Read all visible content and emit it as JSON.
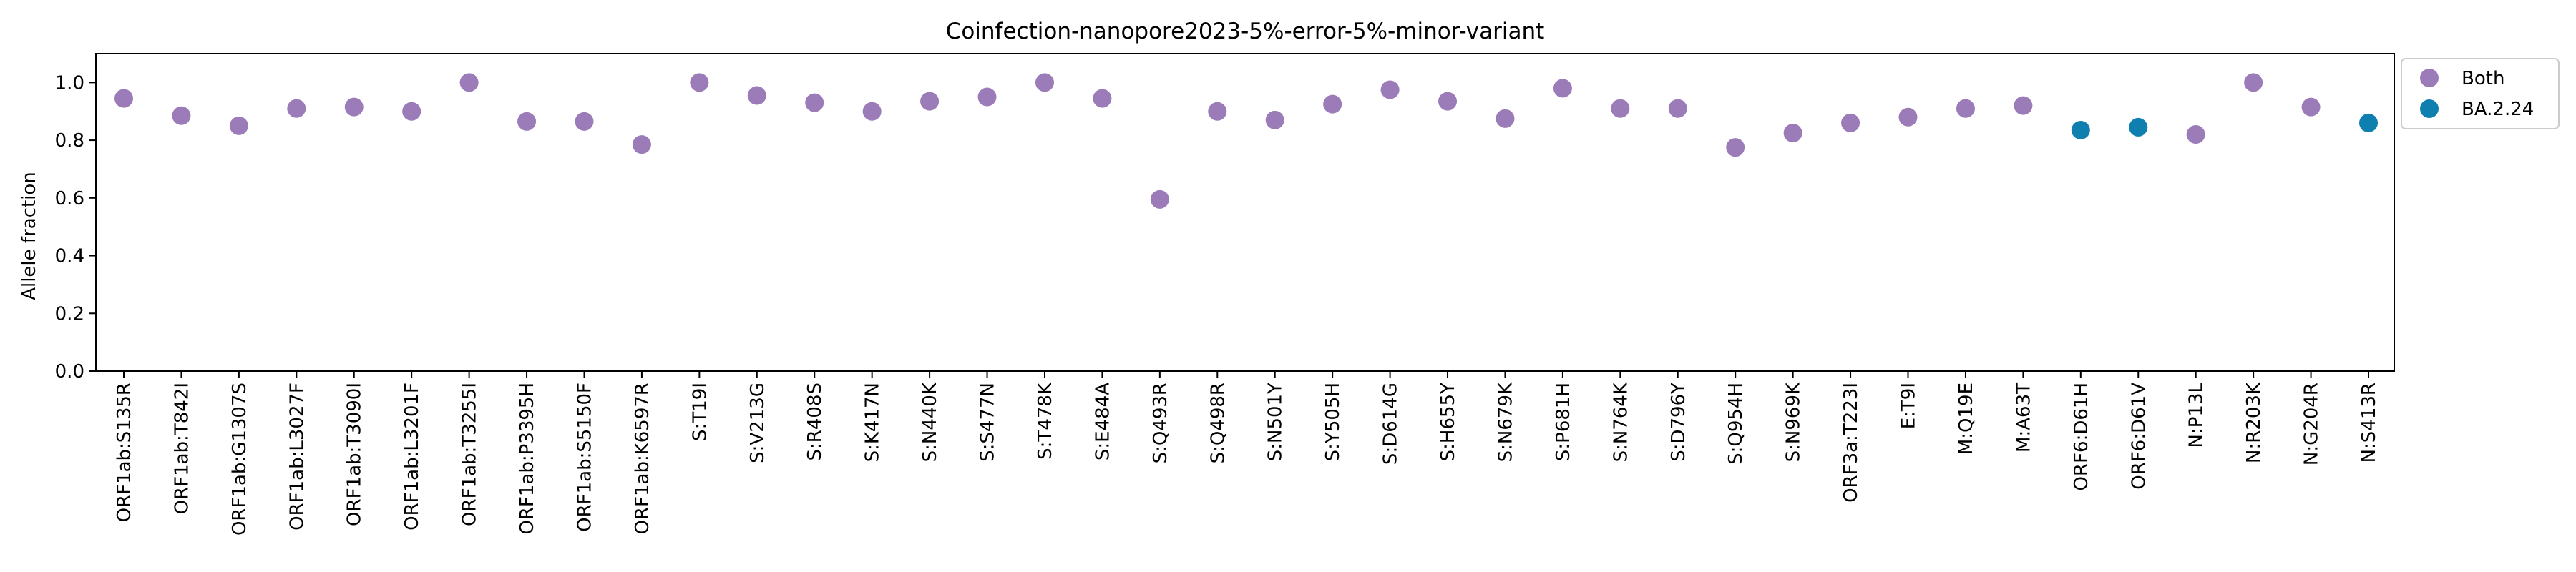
{
  "chart_data": {
    "type": "scatter",
    "title": "Coinfection-nanopore2023-5%-error-5%-minor-variant",
    "xlabel": "",
    "ylabel": "Allele fraction",
    "ylim": [
      0,
      1.1
    ],
    "yticks": [
      0.0,
      0.2,
      0.4,
      0.6,
      0.8,
      1.0
    ],
    "ytick_labels": [
      "0.0",
      "0.2",
      "0.4",
      "0.6",
      "0.8",
      "1.0"
    ],
    "grid": false,
    "legend_position": "outside-top-right",
    "categories": [
      "ORF1ab:S135R",
      "ORF1ab:T842I",
      "ORF1ab:G1307S",
      "ORF1ab:L3027F",
      "ORF1ab:T3090I",
      "ORF1ab:L3201F",
      "ORF1ab:T3255I",
      "ORF1ab:P3395H",
      "ORF1ab:S5150F",
      "ORF1ab:K6597R",
      "S:T19I",
      "S:V213G",
      "S:R408S",
      "S:K417N",
      "S:N440K",
      "S:S477N",
      "S:T478K",
      "S:E484A",
      "S:Q493R",
      "S:Q498R",
      "S:N501Y",
      "S:Y505H",
      "S:D614G",
      "S:H655Y",
      "S:N679K",
      "S:P681H",
      "S:N764K",
      "S:D796Y",
      "S:Q954H",
      "S:N969K",
      "ORF3a:T223I",
      "E:T9I",
      "M:Q19E",
      "M:A63T",
      "ORF6:D61H",
      "ORF6:D61V",
      "N:P13L",
      "N:R203K",
      "N:G204R",
      "N:S413R"
    ],
    "series": [
      {
        "name": "Both",
        "color": "#9b7bb8",
        "points": [
          {
            "x": "ORF1ab:S135R",
            "y": 0.945
          },
          {
            "x": "ORF1ab:T842I",
            "y": 0.885
          },
          {
            "x": "ORF1ab:G1307S",
            "y": 0.85
          },
          {
            "x": "ORF1ab:L3027F",
            "y": 0.91
          },
          {
            "x": "ORF1ab:T3090I",
            "y": 0.915
          },
          {
            "x": "ORF1ab:L3201F",
            "y": 0.9
          },
          {
            "x": "ORF1ab:T3255I",
            "y": 1.0
          },
          {
            "x": "ORF1ab:P3395H",
            "y": 0.865
          },
          {
            "x": "ORF1ab:S5150F",
            "y": 0.865
          },
          {
            "x": "ORF1ab:K6597R",
            "y": 0.785
          },
          {
            "x": "S:T19I",
            "y": 1.0
          },
          {
            "x": "S:V213G",
            "y": 0.955
          },
          {
            "x": "S:R408S",
            "y": 0.93
          },
          {
            "x": "S:K417N",
            "y": 0.9
          },
          {
            "x": "S:N440K",
            "y": 0.935
          },
          {
            "x": "S:S477N",
            "y": 0.95
          },
          {
            "x": "S:T478K",
            "y": 1.0
          },
          {
            "x": "S:E484A",
            "y": 0.945
          },
          {
            "x": "S:Q493R",
            "y": 0.595
          },
          {
            "x": "S:Q498R",
            "y": 0.9
          },
          {
            "x": "S:N501Y",
            "y": 0.87
          },
          {
            "x": "S:Y505H",
            "y": 0.925
          },
          {
            "x": "S:D614G",
            "y": 0.975
          },
          {
            "x": "S:H655Y",
            "y": 0.935
          },
          {
            "x": "S:N679K",
            "y": 0.875
          },
          {
            "x": "S:P681H",
            "y": 0.98
          },
          {
            "x": "S:N764K",
            "y": 0.91
          },
          {
            "x": "S:D796Y",
            "y": 0.91
          },
          {
            "x": "S:Q954H",
            "y": 0.775
          },
          {
            "x": "S:N969K",
            "y": 0.825
          },
          {
            "x": "ORF3a:T223I",
            "y": 0.86
          },
          {
            "x": "E:T9I",
            "y": 0.88
          },
          {
            "x": "M:Q19E",
            "y": 0.91
          },
          {
            "x": "M:A63T",
            "y": 0.92
          },
          {
            "x": "N:P13L",
            "y": 0.82
          },
          {
            "x": "N:R203K",
            "y": 1.0
          },
          {
            "x": "N:G204R",
            "y": 0.915
          }
        ]
      },
      {
        "name": "BA.2.24",
        "color": "#0f7fb0",
        "points": [
          {
            "x": "ORF6:D61H",
            "y": 0.835
          },
          {
            "x": "ORF6:D61V",
            "y": 0.845
          },
          {
            "x": "N:S413R",
            "y": 0.86
          }
        ]
      }
    ]
  }
}
